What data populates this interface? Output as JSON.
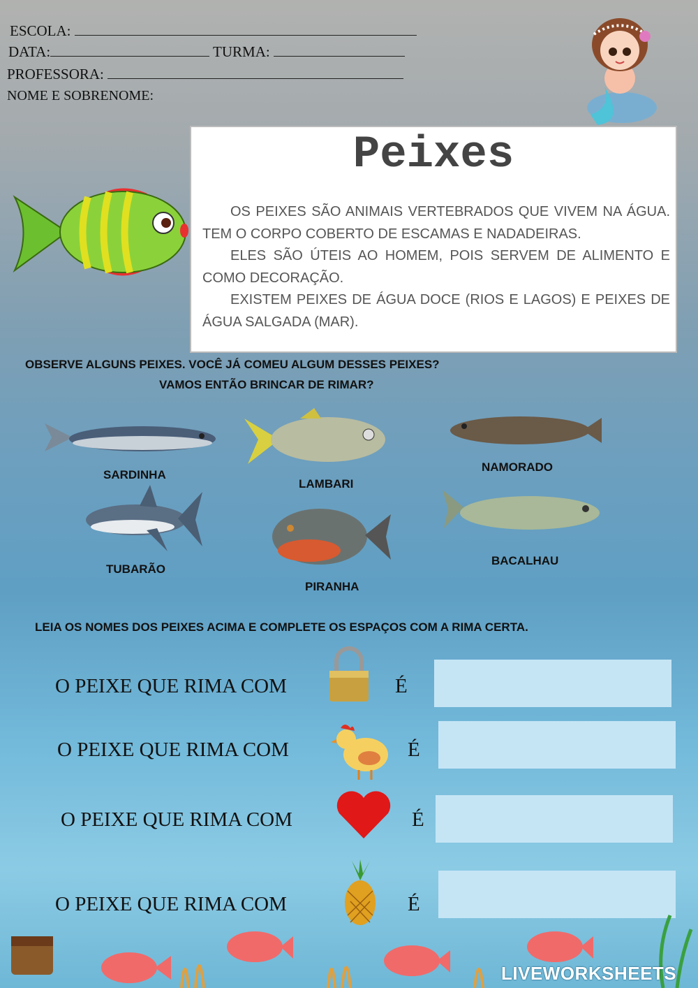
{
  "header": {
    "school_label": "ESCOLA:",
    "date_label": "DATA:",
    "class_label": "TURMA:",
    "teacher_label": "PROFESSORA:",
    "name_label": "NOME E SOBRENOME:"
  },
  "reading": {
    "title": "Peixes",
    "paragraphs": [
      "OS PEIXES SÃO ANIMAIS VERTEBRADOS QUE VIVEM NA ÁGUA. TEM O CORPO COBERTO DE ESCAMAS E NADADEIRAS.",
      "ELES SÃO ÚTEIS AO HOMEM, POIS SERVEM DE ALIMENTO E COMO DECORAÇÃO.",
      "EXISTEM PEIXES DE ÁGUA DOCE (RIOS E LAGOS) E PEIXES DE ÁGUA SALGADA (MAR)."
    ]
  },
  "observe": {
    "line1": "OBSERVE ALGUNS PEIXES. VOCÊ JÁ COMEU ALGUM DESSES PEIXES?",
    "line2": "VAMOS ENTÃO BRINCAR DE RIMAR?"
  },
  "fishes": [
    "SARDINHA",
    "LAMBARI",
    "NAMORADO",
    "TUBARÃO",
    "PIRANHA",
    "BACALHAU"
  ],
  "exercise": {
    "instruction": "LEIA OS NOMES DOS PEIXES ACIMA E COMPLETE OS ESPAÇOS COM A RIMA CERTA.",
    "questions": [
      {
        "prompt": "O PEIXE QUE RIMA COM",
        "icon": "padlock-icon",
        "suffix": "É",
        "answer": ""
      },
      {
        "prompt": "O PEIXE QUE RIMA COM",
        "icon": "chicken-icon",
        "suffix": "É",
        "answer": ""
      },
      {
        "prompt": "O PEIXE QUE RIMA COM",
        "icon": "heart-icon",
        "suffix": "É",
        "answer": ""
      },
      {
        "prompt": "O PEIXE QUE RIMA COM",
        "icon": "pineapple-icon",
        "suffix": "É",
        "answer": ""
      }
    ]
  },
  "brand": "LIVEWORKSHEETS",
  "colors": {
    "answer_box": "#c5e5f5",
    "fish_green": "#8bd23a",
    "fish_red": "#e83030"
  }
}
